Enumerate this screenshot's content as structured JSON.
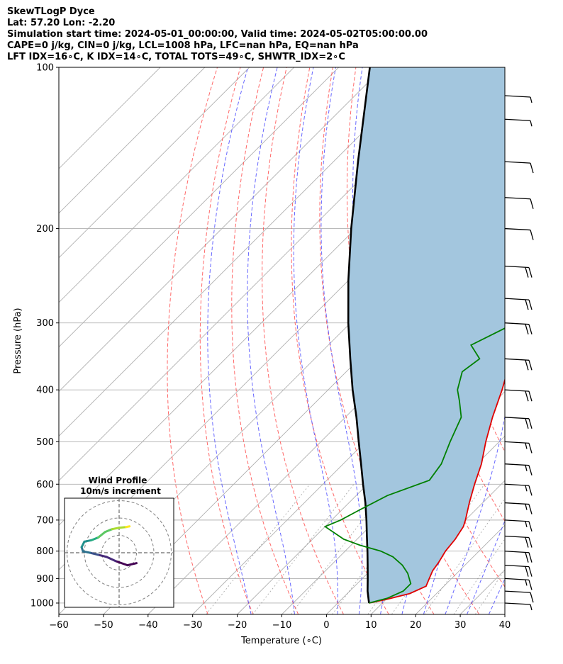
{
  "header": {
    "line1": "SkewTLogP Dyce",
    "line2": "Lat: 57.20   Lon: -2.20",
    "line3": "Simulation start time: 2024-05-01_00:00:00, Valid time: 2024-05-02T05:00:00.00",
    "line4": "CAPE=0 j/kg, CIN=0 j/kg, LCL=1008 hPa, LFC=nan hPa, EQ=nan hPa",
    "line5": "LFT IDX=16∘C, K IDX=14∘C, TOTAL TOTS=49∘C, SHWTR_IDX=2∘C"
  },
  "chart_data": {
    "type": "line",
    "xlabel": "Temperature (∘C)",
    "ylabel": "Pressure (hPa)",
    "xlim": [
      -60,
      40
    ],
    "ylim": [
      1050,
      100
    ],
    "y_scale": "log",
    "skew": true,
    "x_ticks": [
      "−60",
      "−50",
      "−40",
      "−30",
      "−20",
      "−10",
      "0",
      "10",
      "20",
      "30",
      "40"
    ],
    "y_ticks": [
      "1000",
      "900",
      "800",
      "700",
      "600",
      "500",
      "400",
      "300",
      "200",
      "100"
    ],
    "grid": true,
    "series": [
      {
        "role": "temperature",
        "color": "#e00000",
        "points": [
          [
            1000,
            7
          ],
          [
            985,
            10
          ],
          [
            960,
            14
          ],
          [
            930,
            16
          ],
          [
            900,
            15
          ],
          [
            870,
            14
          ],
          [
            840,
            13.5
          ],
          [
            800,
            12.5
          ],
          [
            760,
            12
          ],
          [
            720,
            11
          ],
          [
            700,
            10
          ],
          [
            650,
            7
          ],
          [
            600,
            4
          ],
          [
            550,
            1
          ],
          [
            500,
            -3
          ],
          [
            450,
            -7
          ],
          [
            400,
            -11
          ],
          [
            350,
            -16
          ],
          [
            300,
            -21
          ],
          [
            270,
            -24
          ],
          [
            250,
            -27
          ],
          [
            235,
            -29
          ],
          [
            220,
            -31
          ],
          [
            200,
            -33
          ],
          [
            180,
            -37
          ],
          [
            160,
            -41
          ],
          [
            145,
            -44
          ],
          [
            130,
            -48
          ],
          [
            115,
            -52
          ],
          [
            100,
            -57
          ]
        ]
      },
      {
        "role": "dewpoint",
        "color": "#008000",
        "points": [
          [
            1000,
            7
          ],
          [
            980,
            10
          ],
          [
            950,
            12
          ],
          [
            920,
            12
          ],
          [
            880,
            9
          ],
          [
            850,
            6
          ],
          [
            820,
            2
          ],
          [
            800,
            -2
          ],
          [
            780,
            -8
          ],
          [
            760,
            -13
          ],
          [
            720,
            -20
          ],
          [
            700,
            -18
          ],
          [
            670,
            -16
          ],
          [
            630,
            -13
          ],
          [
            590,
            -7
          ],
          [
            550,
            -8
          ],
          [
            500,
            -11
          ],
          [
            450,
            -14
          ],
          [
            420,
            -18
          ],
          [
            400,
            -21
          ],
          [
            370,
            -24
          ],
          [
            350,
            -23
          ],
          [
            330,
            -28
          ],
          [
            300,
            -23
          ],
          [
            280,
            -24
          ],
          [
            265,
            -26
          ],
          [
            245,
            -29
          ],
          [
            235,
            -31
          ],
          [
            220,
            -30
          ],
          [
            205,
            -30
          ],
          [
            185,
            -33
          ],
          [
            168,
            -37
          ],
          [
            150,
            -42
          ],
          [
            130,
            -49
          ],
          [
            115,
            -56
          ],
          [
            100,
            -62
          ]
        ]
      },
      {
        "role": "parcel",
        "color": "#000000",
        "points": [
          [
            1000,
            7
          ],
          [
            950,
            4
          ],
          [
            900,
            1.2
          ],
          [
            850,
            -1.8
          ],
          [
            800,
            -5
          ],
          [
            750,
            -8.5
          ],
          [
            700,
            -12.2
          ],
          [
            650,
            -16.3
          ],
          [
            600,
            -21
          ],
          [
            550,
            -26
          ],
          [
            500,
            -31.5
          ],
          [
            450,
            -37.5
          ],
          [
            400,
            -44.5
          ],
          [
            350,
            -52
          ],
          [
            300,
            -60.5
          ],
          [
            250,
            -70
          ],
          [
            200,
            -81
          ],
          [
            150,
            -94.5
          ],
          [
            100,
            -113
          ]
        ]
      }
    ],
    "shading": {
      "between": "temperature and parcel",
      "color": "#a3c6de"
    },
    "wind_barbs": [
      {
        "p": 100,
        "speed_kt": 5
      },
      {
        "p": 125,
        "speed_kt": 5
      },
      {
        "p": 150,
        "speed_kt": 10
      },
      {
        "p": 175,
        "speed_kt": 10
      },
      {
        "p": 200,
        "speed_kt": 10
      },
      {
        "p": 235,
        "speed_kt": 20
      },
      {
        "p": 270,
        "speed_kt": 20
      },
      {
        "p": 300,
        "speed_kt": 20
      },
      {
        "p": 350,
        "speed_kt": 20
      },
      {
        "p": 400,
        "speed_kt": 20
      },
      {
        "p": 450,
        "speed_kt": 20
      },
      {
        "p": 500,
        "speed_kt": 15
      },
      {
        "p": 550,
        "speed_kt": 15
      },
      {
        "p": 600,
        "speed_kt": 15
      },
      {
        "p": 650,
        "speed_kt": 15
      },
      {
        "p": 700,
        "speed_kt": 15
      },
      {
        "p": 750,
        "speed_kt": 20
      },
      {
        "p": 800,
        "speed_kt": 20
      },
      {
        "p": 850,
        "speed_kt": 20
      },
      {
        "p": 900,
        "speed_kt": 15
      },
      {
        "p": 950,
        "speed_kt": 10
      },
      {
        "p": 1000,
        "speed_kt": 5
      }
    ],
    "hodograph": {
      "title": "Wind Profile",
      "subtitle": "10m/s increment",
      "rings": [
        10,
        20,
        30
      ],
      "points_ms": [
        [
          2.5,
          -1.5
        ],
        [
          1.2,
          -1.8
        ],
        [
          -0.5,
          -1.2
        ],
        [
          -1.8,
          -0.6
        ],
        [
          -3.0,
          -0.3
        ],
        [
          -4.2,
          0.0
        ],
        [
          -5.2,
          0.2
        ],
        [
          -5.4,
          0.8
        ],
        [
          -5.0,
          1.6
        ],
        [
          -4.0,
          1.8
        ],
        [
          -3.0,
          2.2
        ],
        [
          -2.0,
          3.0
        ],
        [
          -1.0,
          3.4
        ],
        [
          0.0,
          3.6
        ],
        [
          1.0,
          3.7
        ],
        [
          1.5,
          3.8
        ]
      ]
    }
  }
}
